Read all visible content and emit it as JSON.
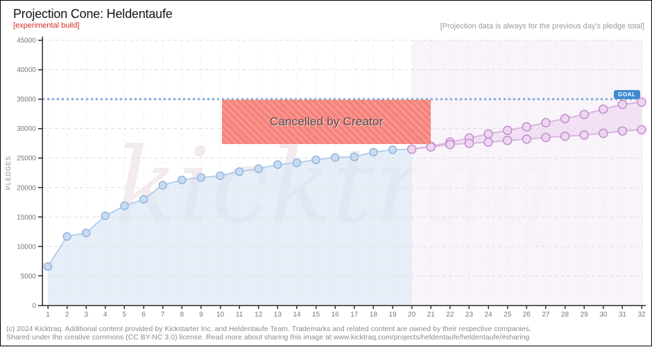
{
  "header": {
    "title": "Projection Cone: Heldentaufe",
    "subtitle": "[experimental build]",
    "note": "[Projection data is always for the previous day's pledge total]"
  },
  "watermark": "kicktraq",
  "chart_data": {
    "type": "line",
    "title": "Projection Cone: Heldentaufe",
    "xlabel": "",
    "ylabel": "PLEDGES",
    "xlim": [
      1,
      32
    ],
    "ylim": [
      0,
      45000
    ],
    "x_ticks": [
      1,
      2,
      3,
      4,
      5,
      6,
      7,
      8,
      9,
      10,
      11,
      12,
      13,
      14,
      15,
      16,
      17,
      18,
      19,
      20,
      21,
      22,
      23,
      24,
      25,
      26,
      27,
      28,
      29,
      30,
      31,
      32
    ],
    "y_ticks": [
      0,
      5000,
      10000,
      15000,
      20000,
      25000,
      30000,
      35000,
      40000,
      45000
    ],
    "grid": true,
    "goal": {
      "value": 35000,
      "label": "GOAL"
    },
    "projection_start_day": 20,
    "series": [
      {
        "name": "Actual pledges",
        "role": "actual",
        "x": [
          1,
          2,
          3,
          4,
          5,
          6,
          7,
          8,
          9,
          10,
          11,
          12,
          13,
          14,
          15,
          16,
          17,
          18,
          19
        ],
        "values": [
          6600,
          11700,
          12300,
          15200,
          16900,
          18000,
          20400,
          21300,
          21700,
          22000,
          22700,
          23200,
          23900,
          24200,
          24700,
          25100,
          25200,
          26000,
          26400
        ]
      },
      {
        "name": "Projection upper bound",
        "role": "upper",
        "x": [
          20,
          21,
          22,
          23,
          24,
          25,
          26,
          27,
          28,
          29,
          30,
          31,
          32
        ],
        "values": [
          26500,
          27000,
          27700,
          28400,
          29100,
          29700,
          30300,
          31000,
          31700,
          32400,
          33300,
          34100,
          34500
        ]
      },
      {
        "name": "Projection lower bound",
        "role": "lower",
        "x": [
          20,
          21,
          22,
          23,
          24,
          25,
          26,
          27,
          28,
          29,
          30,
          31,
          32
        ],
        "values": [
          26500,
          26900,
          27300,
          27500,
          27700,
          28000,
          28200,
          28500,
          28700,
          28900,
          29200,
          29600,
          29800
        ]
      }
    ],
    "annotation": {
      "type": "box",
      "label": "Cancelled by Creator",
      "x_from": 10.1,
      "x_to": 21.0,
      "y_from": 27400,
      "y_to": 34900
    }
  },
  "colors": {
    "accent_blue": "#3f8ad0",
    "goal_line": "#7ba9dc",
    "actual_line": "#b5cdea",
    "actual_fill": "#d9e6f4",
    "actual_marker_fill": "#c9dbf0",
    "actual_marker_stroke": "#93b6dd",
    "proj_line": "#dbb5e0",
    "proj_fill": "#efd9f2",
    "proj_marker_fill": "#eed6f1",
    "proj_marker_stroke": "#c08fcb",
    "proj_band": "#f8f2f9",
    "cancel_fill": "#f5837b",
    "experimental_red": "#d42a22",
    "grid_major": "#dddddd",
    "grid_minor": "#e5e3e6",
    "axis": "#2e2e2e"
  },
  "footer": {
    "line1": "(c) 2024 Kicktraq. Additional content provided by Kickstarter Inc. and Heldentaufe Team. Trademarks and related content are owned by their respective companies.",
    "line2": "Shared under the creative commons (CC BY-NC 3.0) license. Read more about sharing this image at www.kicktraq.com/projects/heldentaufe/heldentaufe/#sharing"
  }
}
